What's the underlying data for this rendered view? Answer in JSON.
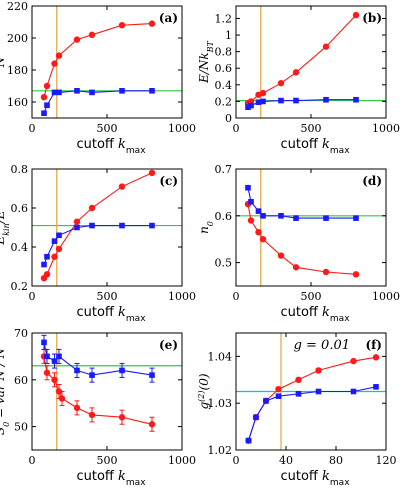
{
  "chart_data": [
    {
      "id": "a",
      "type": "line",
      "panel_label": "(a)",
      "ylabel": "N",
      "xlabel": "cutoff k_max",
      "xlim": [
        0,
        1000
      ],
      "ylim": [
        150,
        220
      ],
      "xticks": [
        0,
        500,
        1000
      ],
      "yticks": [
        160,
        180,
        200,
        220
      ],
      "xtick_labels": [
        "0",
        "500",
        "1000"
      ],
      "ytick_labels": [
        "160",
        "180",
        "200",
        "220"
      ],
      "hline": {
        "y": 167,
        "color": "#2ecc40"
      },
      "vline": {
        "x": 165,
        "color": "#e8a33d"
      },
      "series": [
        {
          "color": "#ff1a1a",
          "marker": "circle",
          "x": [
            80,
            100,
            150,
            180,
            300,
            400,
            600,
            800
          ],
          "y": [
            163,
            170,
            184,
            189,
            199,
            202,
            208,
            209
          ]
        },
        {
          "color": "#1a1aff",
          "marker": "square",
          "x": [
            80,
            100,
            150,
            180,
            300,
            400,
            600,
            800
          ],
          "y": [
            153,
            158,
            166,
            166,
            167,
            166,
            167,
            167
          ]
        }
      ]
    },
    {
      "id": "b",
      "type": "line",
      "panel_label": "(b)",
      "ylabel": "E/Nk_BT",
      "xlabel": "cutoff k_max",
      "xlim": [
        0,
        1000
      ],
      "ylim": [
        0,
        1.35
      ],
      "xticks": [
        0,
        500,
        1000
      ],
      "yticks": [
        0,
        0.2,
        0.4,
        0.6,
        0.8,
        1.0,
        1.2
      ],
      "xtick_labels": [
        "0",
        "500",
        "1000"
      ],
      "ytick_labels": [
        "0",
        "0.2",
        "0.4",
        "0.6",
        "0.8",
        "1",
        "1.2"
      ],
      "hline": {
        "y": 0.21,
        "color": "#2ecc40"
      },
      "vline": {
        "x": 165,
        "color": "#e8a33d"
      },
      "series": [
        {
          "color": "#ff1a1a",
          "marker": "circle",
          "x": [
            80,
            100,
            150,
            180,
            300,
            400,
            600,
            800
          ],
          "y": [
            0.18,
            0.2,
            0.28,
            0.3,
            0.42,
            0.55,
            0.86,
            1.24
          ]
        },
        {
          "color": "#1a1aff",
          "marker": "square",
          "x": [
            80,
            100,
            150,
            180,
            300,
            400,
            600,
            800
          ],
          "y": [
            0.13,
            0.15,
            0.19,
            0.2,
            0.21,
            0.21,
            0.22,
            0.22
          ]
        }
      ]
    },
    {
      "id": "c",
      "type": "line",
      "panel_label": "(c)",
      "ylabel": "E_kin/E",
      "xlabel": "cutoff k_max",
      "xlim": [
        0,
        1000
      ],
      "ylim": [
        0.2,
        0.8
      ],
      "xticks": [
        0,
        500,
        1000
      ],
      "yticks": [
        0.2,
        0.4,
        0.6,
        0.8
      ],
      "xtick_labels": [
        "0",
        "500",
        "1000"
      ],
      "ytick_labels": [
        "0.2",
        "0.4",
        "0.6",
        "0.8"
      ],
      "hline": {
        "y": 0.51,
        "color": "#2ecc40"
      },
      "vline": {
        "x": 165,
        "color": "#e8a33d"
      },
      "series": [
        {
          "color": "#ff1a1a",
          "marker": "circle",
          "x": [
            80,
            100,
            150,
            180,
            300,
            400,
            600,
            800
          ],
          "y": [
            0.24,
            0.26,
            0.35,
            0.39,
            0.53,
            0.6,
            0.71,
            0.78
          ]
        },
        {
          "color": "#1a1aff",
          "marker": "square",
          "x": [
            80,
            100,
            150,
            180,
            300,
            400,
            600,
            800
          ],
          "y": [
            0.31,
            0.35,
            0.43,
            0.46,
            0.5,
            0.51,
            0.51,
            0.51
          ]
        }
      ]
    },
    {
      "id": "d",
      "type": "line",
      "panel_label": "(d)",
      "ylabel": "n_0",
      "xlabel": "cutoff k_max",
      "xlim": [
        0,
        1000
      ],
      "ylim": [
        0.45,
        0.7
      ],
      "xticks": [
        0,
        500,
        1000
      ],
      "yticks": [
        0.5,
        0.6,
        0.7
      ],
      "xtick_labels": [
        "0",
        "500",
        "1000"
      ],
      "ytick_labels": [
        "0.5",
        "0.6",
        "0.7"
      ],
      "hline": {
        "y": 0.6,
        "color": "#2ecc40"
      },
      "vline": {
        "x": 165,
        "color": "#e8a33d"
      },
      "series": [
        {
          "color": "#ff1a1a",
          "marker": "circle",
          "x": [
            80,
            100,
            150,
            180,
            300,
            400,
            600,
            800
          ],
          "y": [
            0.625,
            0.59,
            0.565,
            0.55,
            0.515,
            0.49,
            0.48,
            0.475
          ]
        },
        {
          "color": "#1a1aff",
          "marker": "square",
          "x": [
            80,
            100,
            150,
            180,
            300,
            400,
            600,
            800
          ],
          "y": [
            0.66,
            0.63,
            0.61,
            0.6,
            0.6,
            0.595,
            0.595,
            0.595
          ]
        }
      ]
    },
    {
      "id": "e",
      "type": "line",
      "panel_label": "(e)",
      "ylabel": "S_0 = var N / N",
      "xlabel": "cutoff k_max",
      "xlim": [
        0,
        1000
      ],
      "ylim": [
        45,
        70
      ],
      "xticks": [
        0,
        500,
        1000
      ],
      "yticks": [
        50,
        60,
        70
      ],
      "xtick_labels": [
        "0",
        "500",
        "1000"
      ],
      "ytick_labels": [
        "50",
        "60",
        "70"
      ],
      "hline": {
        "y": 63,
        "color": "#2ecc40"
      },
      "vline": {
        "x": 165,
        "color": "#e8a33d"
      },
      "series": [
        {
          "color": "#ff1a1a",
          "marker": "circle",
          "x": [
            80,
            100,
            150,
            180,
            200,
            300,
            400,
            600,
            800
          ],
          "y": [
            65,
            61.5,
            60,
            57.5,
            56,
            54,
            52.5,
            52,
            50.5
          ],
          "err": [
            1.5,
            1.5,
            1.5,
            1.5,
            1.5,
            1.5,
            1.5,
            1.5,
            1.5
          ]
        },
        {
          "color": "#1a1aff",
          "marker": "square",
          "x": [
            80,
            100,
            150,
            180,
            300,
            400,
            600,
            800
          ],
          "y": [
            68,
            65,
            64,
            65,
            62,
            61,
            62,
            61
          ],
          "err": [
            1.5,
            1.5,
            1.5,
            1.5,
            1.5,
            1.5,
            1.5,
            1.5
          ]
        }
      ]
    },
    {
      "id": "f",
      "type": "line",
      "panel_label": "(f)",
      "ylabel": "g^(2)(0)",
      "xlabel": "cutoff k_max",
      "annotation": "g = 0.01",
      "xlim": [
        0,
        120
      ],
      "ylim": [
        1.02,
        1.045
      ],
      "xticks": [
        0,
        40,
        80,
        120
      ],
      "yticks": [
        1.02,
        1.03,
        1.04
      ],
      "xtick_labels": [
        "0",
        "40",
        "80",
        "120"
      ],
      "ytick_labels": [
        "1.02",
        "1.03",
        "1.04"
      ],
      "hline": {
        "y": 1.0325,
        "color": "#00c8d8"
      },
      "vline": {
        "x": 36,
        "color": "#e8a33d"
      },
      "series": [
        {
          "color": "#ff1a1a",
          "marker": "circle",
          "x": [
            10,
            16,
            24,
            34,
            50,
            66,
            94,
            112
          ],
          "y": [
            1.022,
            1.027,
            1.0305,
            1.033,
            1.035,
            1.037,
            1.039,
            1.0398
          ]
        },
        {
          "color": "#1a1aff",
          "marker": "square",
          "x": [
            10,
            16,
            24,
            34,
            50,
            66,
            94,
            112
          ],
          "y": [
            1.022,
            1.027,
            1.0305,
            1.0315,
            1.032,
            1.0325,
            1.0325,
            1.0335
          ]
        }
      ]
    }
  ]
}
